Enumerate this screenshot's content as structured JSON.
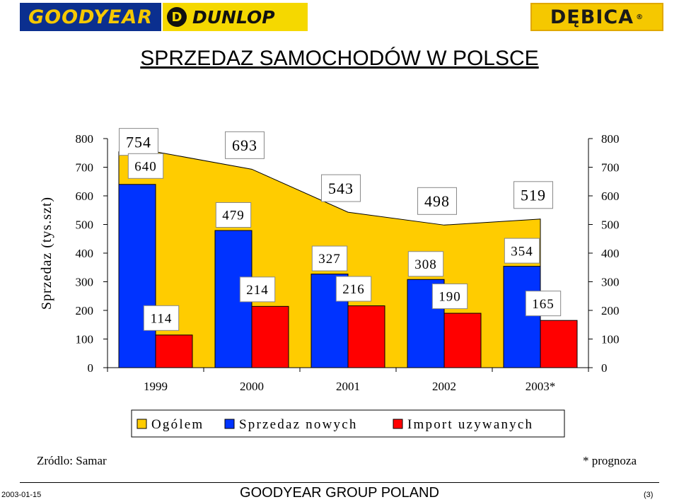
{
  "header": {
    "logos": {
      "goodyear": "GOODYEAR",
      "dunlop": "DUNLOP",
      "debica": "DĘBICA",
      "registered": "®"
    },
    "title": "SPRZEDAZ SAMOCHODÓW W POLSCE"
  },
  "colors": {
    "ogolem": "#ffcc00",
    "nowych": "#0033ff",
    "import": "#ff0000"
  },
  "chart_data": {
    "type": "bar",
    "categories": [
      "1999",
      "2000",
      "2001",
      "2002",
      "2003*"
    ],
    "series": [
      {
        "name": "Ogólem",
        "values": [
          754,
          693,
          543,
          498,
          519
        ],
        "render": "area"
      },
      {
        "name": "Sprzedaz nowych",
        "values": [
          640,
          479,
          327,
          308,
          354
        ]
      },
      {
        "name": "Import uzywanych",
        "values": [
          114,
          214,
          216,
          190,
          165
        ]
      }
    ],
    "ylabel": "Sprzedaz (tys.szt)",
    "ylim": [
      0,
      800
    ],
    "yticks": [
      0,
      100,
      200,
      300,
      400,
      500,
      600,
      700,
      800
    ],
    "secondary_yaxis": true,
    "legend_position": "bottom"
  },
  "footer": {
    "source": "Zródlo: Samar",
    "note": "* prognoza",
    "date": "2003-01-15",
    "company": "GOODYEAR GROUP POLAND",
    "page": "(3)"
  }
}
